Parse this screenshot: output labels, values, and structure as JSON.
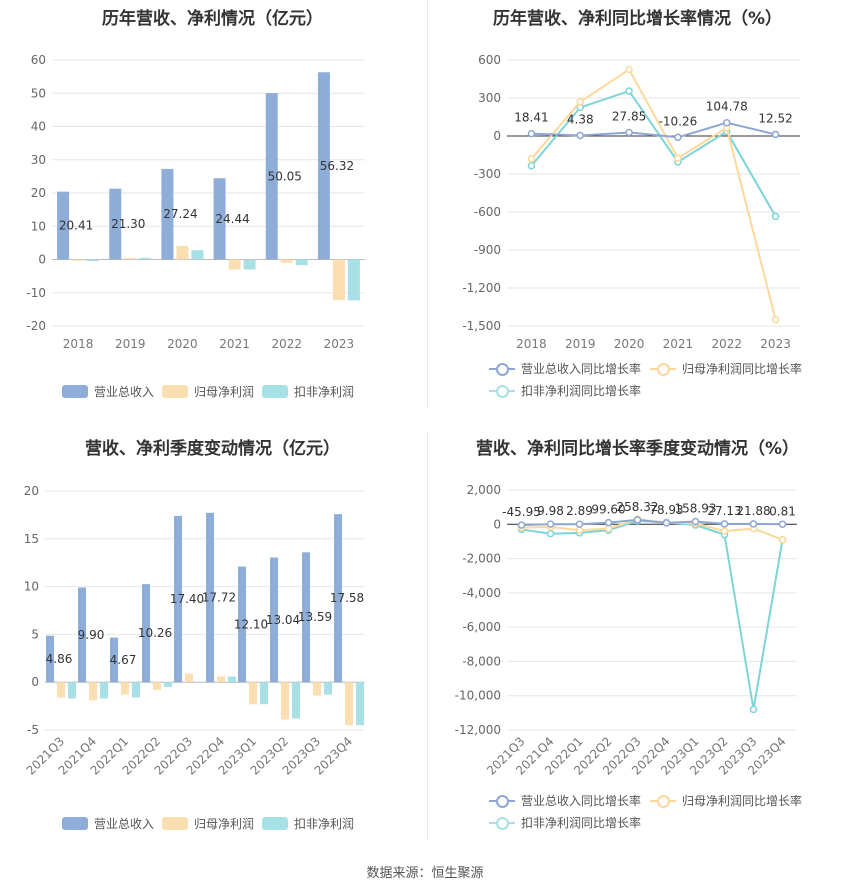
{
  "colors": {
    "revenue": "#8eadd9",
    "netprofit": "#fbdfb0",
    "deducted": "#a7e1e6",
    "rev_line": "#8ea6d3",
    "np_line": "#fdd89a",
    "ded_line": "#7dd4d8"
  },
  "source_text": "数据来源：恒生聚源",
  "legend_labels": {
    "revenue": "营业总收入",
    "netprofit": "归母净利润",
    "deducted": "扣非净利润",
    "rev_growth": "营业总收入同比增长率",
    "np_growth": "归母净利润同比增长率",
    "ded_growth": "扣非净利润同比增长率"
  },
  "chart_data": [
    {
      "type": "bar",
      "title": "历年营收、净利情况（亿元）",
      "categories": [
        "2018",
        "2019",
        "2020",
        "2021",
        "2022",
        "2023"
      ],
      "ylim": [
        -20,
        60
      ],
      "yticks": [
        -20,
        -10,
        0,
        10,
        20,
        30,
        40,
        50,
        60
      ],
      "series": [
        {
          "name": "营业总收入",
          "values": [
            20.41,
            21.3,
            27.24,
            24.44,
            50.05,
            56.32
          ],
          "labeled": true
        },
        {
          "name": "归母净利润",
          "values": [
            -0.4,
            0.5,
            4.1,
            -3.0,
            -1.0,
            -12.2
          ]
        },
        {
          "name": "扣非净利润",
          "values": [
            -0.5,
            0.5,
            2.8,
            -3.0,
            -1.7,
            -12.3
          ]
        }
      ],
      "data_labels": [
        "20.41",
        "21.30",
        "27.24",
        "24.44",
        "50.05",
        "56.32"
      ]
    },
    {
      "type": "line",
      "title": "历年营收、净利同比增长率情况（%）",
      "categories": [
        "2018",
        "2019",
        "2020",
        "2021",
        "2022",
        "2023"
      ],
      "ylim": [
        -1500,
        600
      ],
      "yticks": [
        -1500,
        -1200,
        -900,
        -600,
        -300,
        0,
        300,
        600
      ],
      "ytick_labels": [
        "-1,500",
        "-1,200",
        "-900",
        "-600",
        "-300",
        "0",
        "300",
        "600"
      ],
      "series": [
        {
          "name": "营业总收入同比增长率",
          "values": [
            18.41,
            4.38,
            27.85,
            -10.26,
            104.78,
            12.52
          ]
        },
        {
          "name": "归母净利润同比增长率",
          "values": [
            -180,
            270,
            525,
            -175,
            65,
            -1450
          ]
        },
        {
          "name": "扣非净利润同比增长率",
          "values": [
            -235,
            225,
            355,
            -205,
            35,
            -635
          ]
        }
      ],
      "data_labels": [
        "18.41",
        "4.38",
        "27.85",
        "-10.26",
        "104.78",
        "12.52"
      ]
    },
    {
      "type": "bar",
      "title": "营收、净利季度变动情况（亿元）",
      "categories": [
        "2021Q3",
        "2021Q4",
        "2022Q1",
        "2022Q2",
        "2022Q3",
        "2022Q4",
        "2023Q1",
        "2023Q2",
        "2023Q3",
        "2023Q4"
      ],
      "ylim": [
        -5,
        20
      ],
      "yticks": [
        -5,
        0,
        5,
        10,
        15,
        20
      ],
      "series": [
        {
          "name": "营业总收入",
          "values": [
            4.86,
            9.9,
            4.67,
            10.26,
            17.4,
            17.72,
            12.1,
            13.04,
            13.59,
            17.58
          ]
        },
        {
          "name": "归母净利润",
          "values": [
            -1.6,
            -1.9,
            -1.3,
            -0.8,
            0.9,
            0.6,
            -2.3,
            -3.9,
            -1.4,
            -4.5
          ]
        },
        {
          "name": "扣非净利润",
          "values": [
            -1.7,
            -1.7,
            -1.6,
            -0.5,
            0.0,
            0.6,
            -2.3,
            -3.8,
            -1.3,
            -4.5
          ]
        }
      ],
      "data_labels": [
        "4.86",
        "9.90",
        "4.67",
        "10.26",
        "17.40",
        "17.72",
        "12.10",
        "13.04",
        "13.59",
        "17.58"
      ]
    },
    {
      "type": "line",
      "title": "营收、净利同比增长率季度变动情况（%）",
      "categories": [
        "2021Q3",
        "2021Q4",
        "2022Q1",
        "2022Q2",
        "2022Q3",
        "2022Q4",
        "2023Q1",
        "2023Q2",
        "2023Q3",
        "2023Q4"
      ],
      "ylim": [
        -12000,
        2000
      ],
      "yticks": [
        -12000,
        -10000,
        -8000,
        -6000,
        -4000,
        -2000,
        0,
        2000
      ],
      "ytick_labels": [
        "-12,000",
        "-10,000",
        "-8,000",
        "-6,000",
        "-4,000",
        "-2,000",
        "0",
        "2,000"
      ],
      "series": [
        {
          "name": "营业总收入同比增长率",
          "values": [
            -45.95,
            9.98,
            2.89,
            99.6,
            258.32,
            78.93,
            158.93,
            27.13,
            21.88,
            0.81
          ]
        },
        {
          "name": "归母净利润同比增长率",
          "values": [
            -200,
            -150,
            -350,
            -250,
            300,
            100,
            50,
            -400,
            -250,
            -900
          ]
        },
        {
          "name": "扣非净利润同比增长率",
          "values": [
            -300,
            -550,
            -500,
            -350,
            200,
            120,
            -50,
            -600,
            -10800,
            -900
          ]
        }
      ],
      "data_labels": [
        "-45.95",
        "9.98",
        "2.89",
        "99.60",
        "258.32",
        "78.93",
        "158.93",
        "27.13",
        "21.88",
        "0.81"
      ]
    }
  ]
}
